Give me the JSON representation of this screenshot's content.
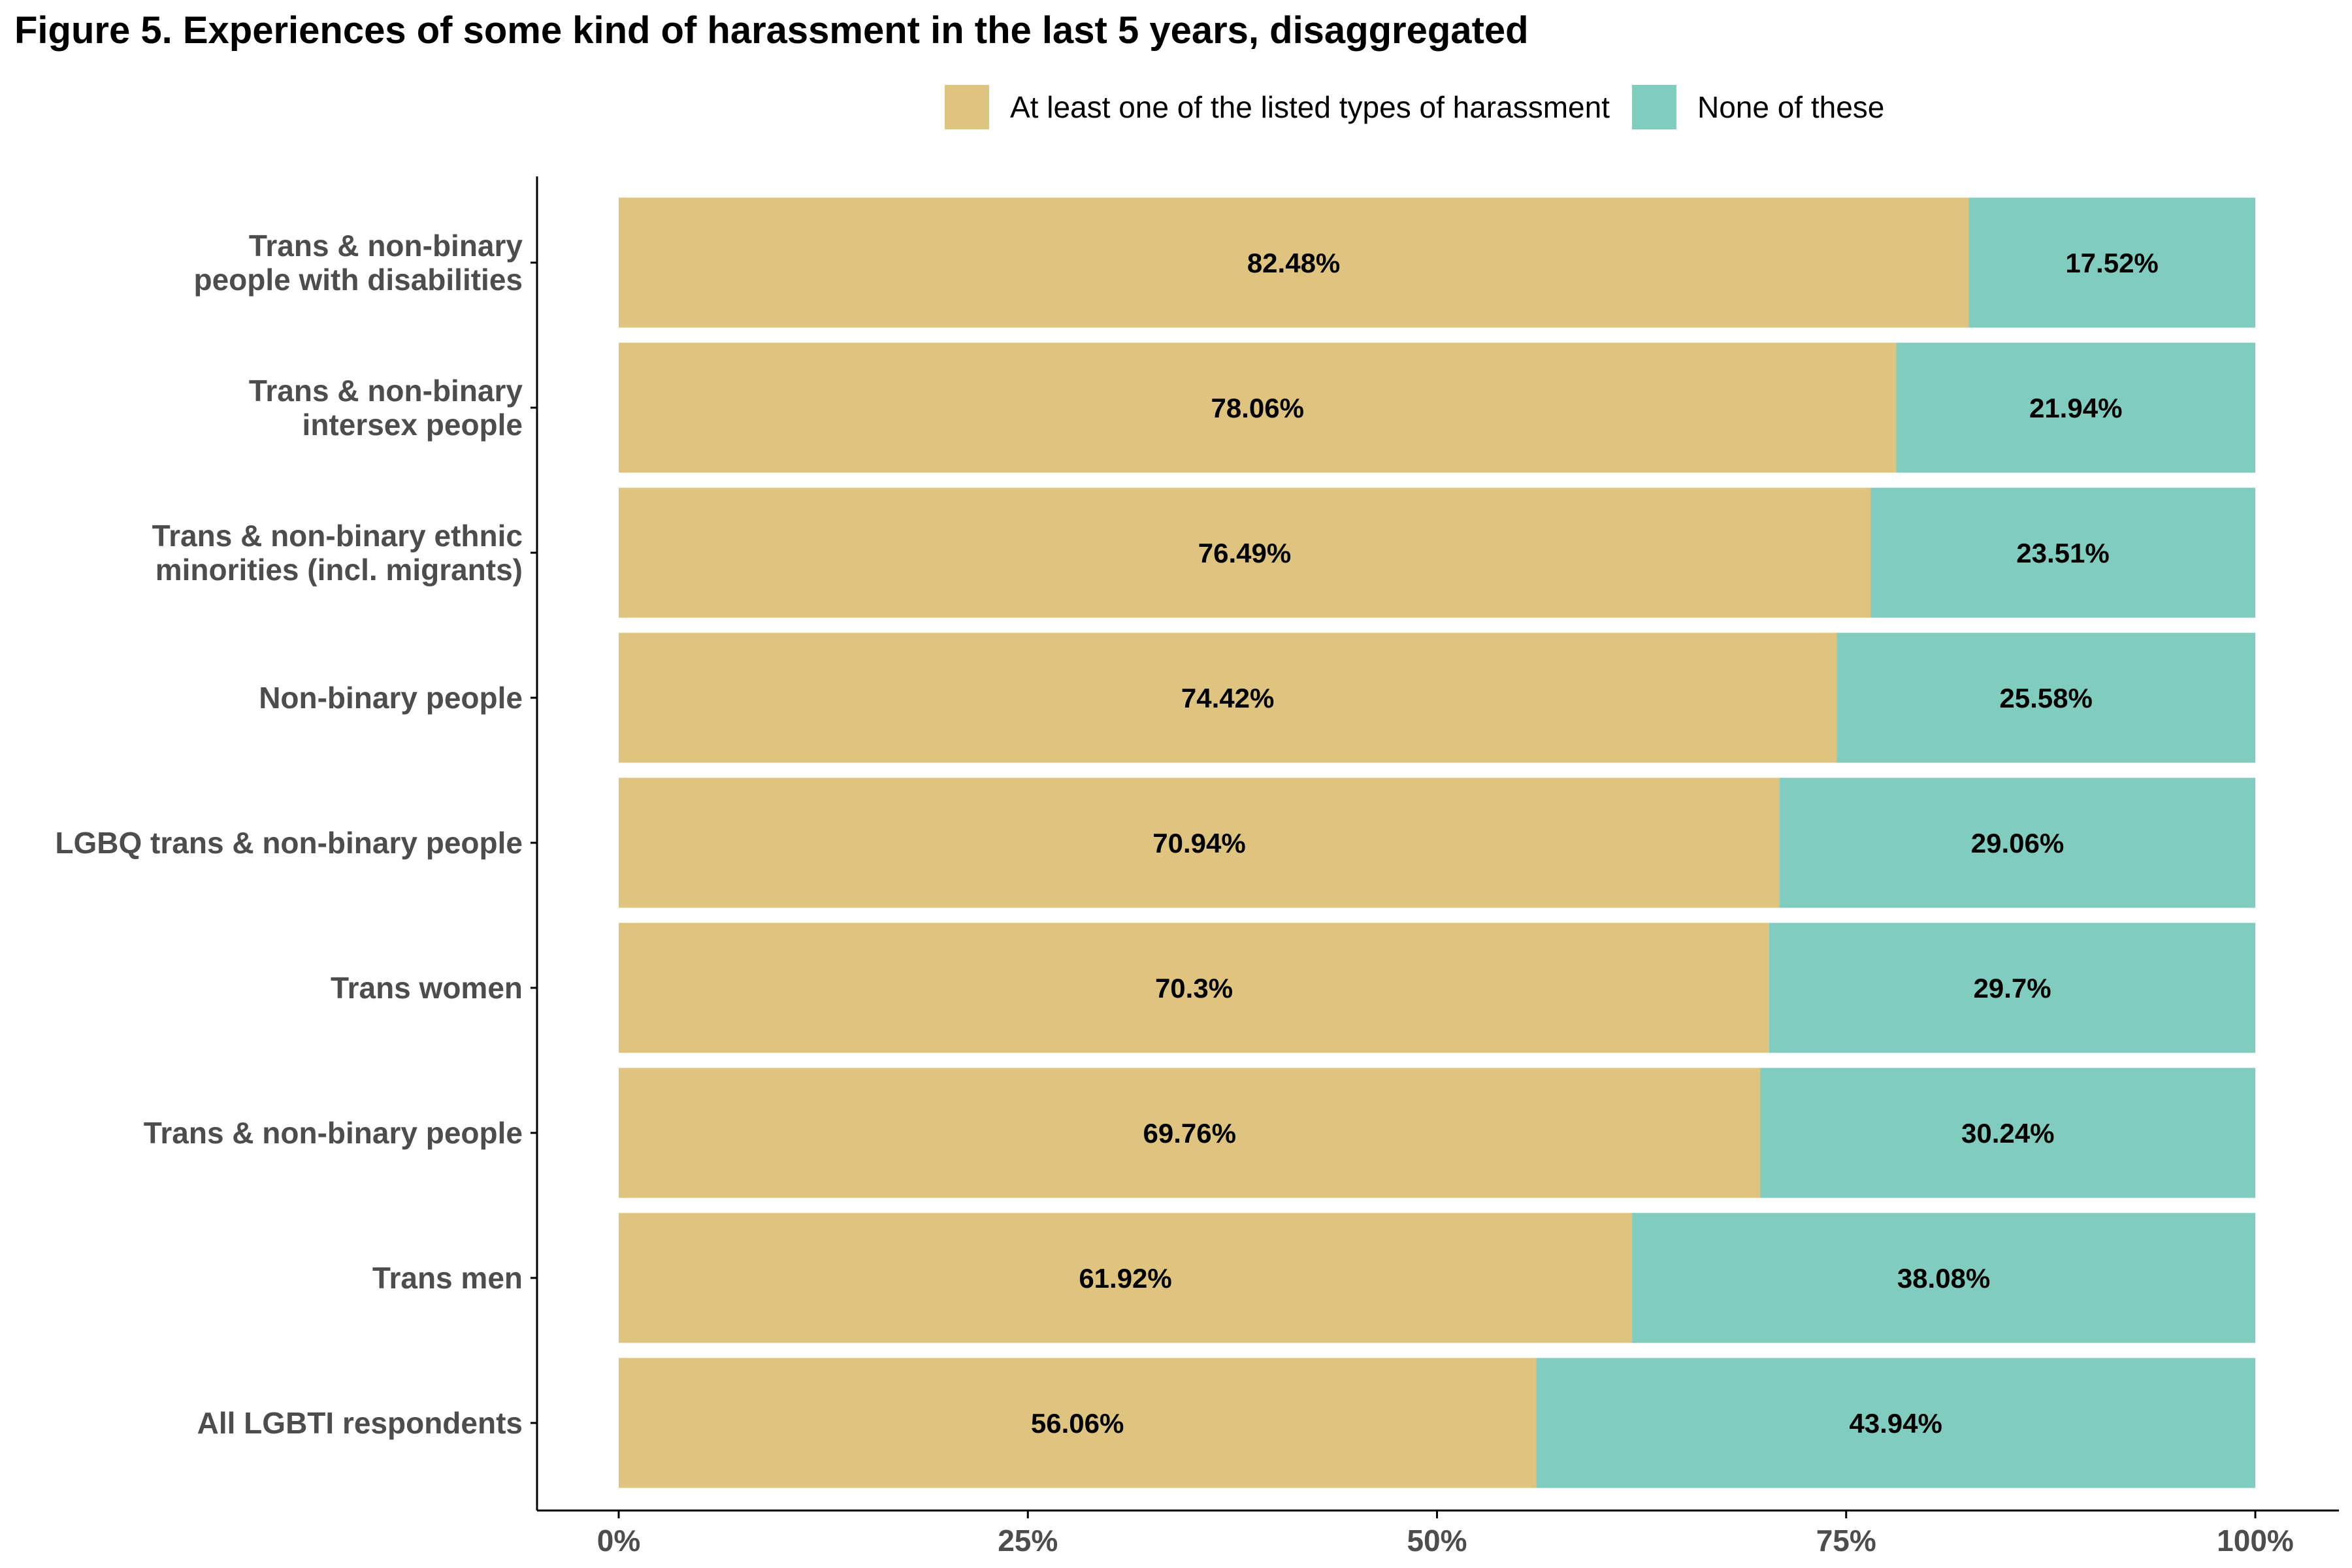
{
  "chart_data": {
    "type": "bar",
    "orientation": "horizontal",
    "stacked": true,
    "title": "Figure 5. Experiences of some kind of harassment in the last 5 years, disaggregated",
    "xlabel": "",
    "ylabel": "",
    "xlim": [
      0,
      100
    ],
    "x_ticks": [
      0,
      25,
      50,
      75,
      100
    ],
    "x_tick_labels": [
      "0%",
      "25%",
      "50%",
      "75%",
      "100%"
    ],
    "legend_position": "top",
    "grid": false,
    "categories": [
      [
        "Trans & non-binary",
        "people with disabilities"
      ],
      [
        "Trans & non-binary",
        "intersex people"
      ],
      [
        "Trans & non-binary ethnic",
        "minorities (incl. migrants)"
      ],
      [
        "Non-binary people"
      ],
      [
        "LGBQ trans & non-binary people"
      ],
      [
        "Trans women"
      ],
      [
        "Trans & non-binary people"
      ],
      [
        "Trans men"
      ],
      [
        "All LGBTI respondents"
      ]
    ],
    "series": [
      {
        "name": "At least one of the listed types of harassment",
        "color": "#dfc47f",
        "values": [
          82.48,
          78.06,
          76.49,
          74.42,
          70.94,
          70.3,
          69.76,
          61.92,
          56.06
        ],
        "labels": [
          "82.48%",
          "78.06%",
          "76.49%",
          "74.42%",
          "70.94%",
          "70.3%",
          "69.76%",
          "61.92%",
          "56.06%"
        ]
      },
      {
        "name": "None of these",
        "color": "#80cdc0",
        "values": [
          17.52,
          21.94,
          23.51,
          25.58,
          29.06,
          29.7,
          30.24,
          38.08,
          43.94
        ],
        "labels": [
          "17.52%",
          "21.94%",
          "23.51%",
          "25.58%",
          "29.06%",
          "29.7%",
          "30.24%",
          "38.08%",
          "43.94%"
        ]
      }
    ]
  }
}
